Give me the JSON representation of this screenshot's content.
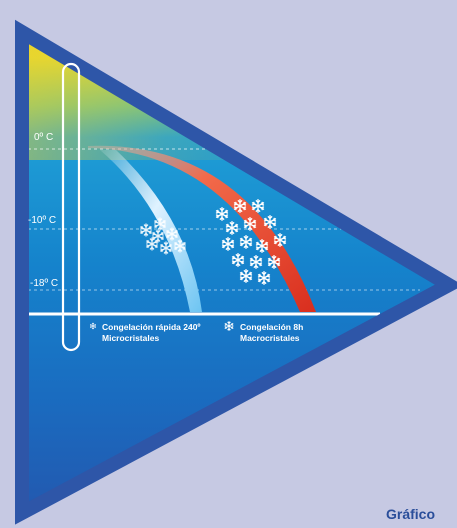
{
  "temperature_labels": [
    "0º C",
    "-10º C",
    "-18º C"
  ],
  "legend": {
    "rapid_line1": "Congelación rápida 240º",
    "rapid_line2": "Microcristales",
    "slow_line1": "Congelación 8h",
    "slow_line2": "Macrocristales"
  },
  "caption": "Gráfico",
  "colors": {
    "background": "#c6c9e3",
    "triangle_border": "#2e56a8",
    "warm_top": "#f7d421",
    "cold_curve": "#8fd0f5",
    "warm_curve": "#e8402c",
    "caption": "#2a4e9a"
  },
  "icons": [
    "snowflake-icon",
    "thermometer-icon"
  ]
}
